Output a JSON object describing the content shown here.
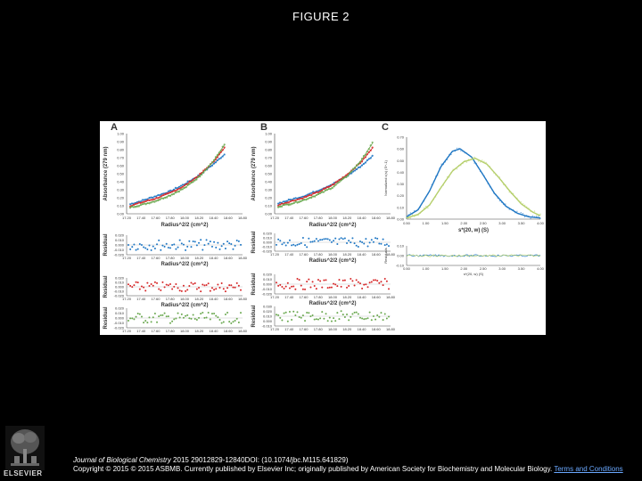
{
  "page": {
    "title": "FIGURE 2"
  },
  "footer": {
    "journal": "Journal of Biological Chemistry",
    "citation": " 2015 29012829-12840DOI: (10.1074/jbc.M115.641829)",
    "copyright": "Copyright © 2015 © 2015 ASBMB. Currently published by Elsevier Inc; originally published by American Society for Biochemistry and Molecular Biology.",
    "link": "Terms and Conditions"
  },
  "logo": {
    "icon": "elsevier-tree-icon",
    "text": "ELSEVIER"
  },
  "colors": {
    "blue": "#1f77c4",
    "red": "#d62728",
    "green": "#6aa84f",
    "lightgreen": "#b5cf6b"
  },
  "chart_data": [
    {
      "type": "scatter",
      "panel": "A",
      "ylabel": "Absorbance (279 nm)",
      "xlabel": "Radius^2/2 (cm^2)",
      "yticks": [
        "1.00",
        "0.90",
        "0.80",
        "0.70",
        "0.60",
        "0.50",
        "0.40",
        "0.30",
        "0.20",
        "0.10",
        "0.00"
      ],
      "xticks": [
        "17.20",
        "17.40",
        "17.60",
        "17.80",
        "18.00",
        "18.20",
        "18.40",
        "18.60",
        "18.80"
      ],
      "xlim": [
        17.2,
        18.8
      ],
      "ylim": [
        0,
        1
      ],
      "series": [
        {
          "color": "blue",
          "x": [
            17.25,
            17.4,
            17.6,
            17.8,
            18.0,
            18.2,
            18.4,
            18.55
          ],
          "y": [
            0.12,
            0.16,
            0.22,
            0.28,
            0.37,
            0.48,
            0.62,
            0.74
          ]
        },
        {
          "color": "red",
          "x": [
            17.25,
            17.4,
            17.6,
            17.8,
            18.0,
            18.2,
            18.4,
            18.55
          ],
          "y": [
            0.1,
            0.14,
            0.19,
            0.26,
            0.35,
            0.48,
            0.65,
            0.82
          ]
        },
        {
          "color": "green",
          "x": [
            17.25,
            17.4,
            17.6,
            17.8,
            18.0,
            18.2,
            18.4,
            18.55
          ],
          "y": [
            0.08,
            0.11,
            0.16,
            0.23,
            0.32,
            0.46,
            0.66,
            0.86
          ]
        }
      ],
      "residuals": [
        {
          "color": "blue",
          "ylabel": "Residual",
          "yticks": [
            "0.020",
            "0.010",
            "0.000",
            "-0.010",
            "-0.020"
          ]
        },
        {
          "color": "red",
          "ylabel": "Residual",
          "yticks": [
            "0.020",
            "0.010",
            "0.000",
            "-0.010",
            "-0.020"
          ]
        },
        {
          "color": "green",
          "ylabel": "Residual",
          "yticks": [
            "0.020",
            "0.010",
            "0.000",
            "-0.010",
            "-0.020"
          ]
        }
      ]
    },
    {
      "type": "scatter",
      "panel": "B",
      "ylabel": "Absorbance (279 nm)",
      "xlabel": "Radius^2/2 (cm^2)",
      "yticks": [
        "1.00",
        "0.90",
        "0.80",
        "0.70",
        "0.60",
        "0.50",
        "0.40",
        "0.30",
        "0.20",
        "0.10",
        "0.00"
      ],
      "xticks": [
        "17.20",
        "17.40",
        "17.60",
        "17.80",
        "18.00",
        "18.20",
        "18.40",
        "18.60",
        "18.80"
      ],
      "xlim": [
        17.2,
        18.8
      ],
      "ylim": [
        0,
        1
      ],
      "series": [
        {
          "color": "blue",
          "x": [
            17.25,
            17.4,
            17.6,
            17.8,
            18.0,
            18.2,
            18.4,
            18.55
          ],
          "y": [
            0.13,
            0.17,
            0.22,
            0.29,
            0.37,
            0.47,
            0.6,
            0.72
          ]
        },
        {
          "color": "red",
          "x": [
            17.25,
            17.4,
            17.6,
            17.8,
            18.0,
            18.2,
            18.4,
            18.55
          ],
          "y": [
            0.11,
            0.15,
            0.2,
            0.27,
            0.36,
            0.49,
            0.65,
            0.82
          ]
        },
        {
          "color": "green",
          "x": [
            17.25,
            17.4,
            17.6,
            17.8,
            18.0,
            18.2,
            18.4,
            18.55
          ],
          "y": [
            0.09,
            0.12,
            0.17,
            0.24,
            0.33,
            0.47,
            0.67,
            0.88
          ]
        }
      ],
      "residuals": [
        {
          "color": "blue",
          "ylabel": "Residual",
          "yticks": [
            "0.020",
            "0.010",
            "0.000",
            "-0.010",
            "-0.020"
          ]
        },
        {
          "color": "red",
          "ylabel": "Residual",
          "yticks": [
            "0.020",
            "0.010",
            "0.000",
            "-0.010",
            "-0.020"
          ]
        },
        {
          "color": "green",
          "ylabel": "Residual",
          "yticks": [
            "0.030",
            "0.020",
            "0.010",
            "0.000",
            "-0.010"
          ]
        }
      ]
    },
    {
      "type": "line",
      "panel": "C",
      "ylabel": "Normalized c(s) (S^-1)",
      "xlabel": "s*(20, w) (S)",
      "yticks": [
        "0.70",
        "0.60",
        "0.50",
        "0.40",
        "0.30",
        "0.20",
        "0.10",
        "0.00"
      ],
      "xticks": [
        "0.50",
        "1.00",
        "1.50",
        "2.00",
        "2.50",
        "3.00",
        "3.50",
        "4.00"
      ],
      "xlim": [
        0.5,
        4.0
      ],
      "ylim": [
        0,
        0.7
      ],
      "series": [
        {
          "color": "blue",
          "x": [
            0.5,
            0.8,
            1.1,
            1.4,
            1.7,
            1.9,
            2.2,
            2.5,
            2.8,
            3.1,
            3.4,
            3.7,
            4.0
          ],
          "y": [
            0.02,
            0.08,
            0.24,
            0.45,
            0.58,
            0.6,
            0.53,
            0.38,
            0.22,
            0.11,
            0.05,
            0.02,
            0.01
          ]
        },
        {
          "color": "lightgreen",
          "x": [
            0.5,
            0.8,
            1.1,
            1.4,
            1.7,
            2.0,
            2.3,
            2.6,
            2.9,
            3.2,
            3.5,
            3.8,
            4.0
          ],
          "y": [
            0.01,
            0.04,
            0.12,
            0.27,
            0.41,
            0.49,
            0.52,
            0.47,
            0.36,
            0.24,
            0.13,
            0.06,
            0.03
          ]
        }
      ],
      "residuals": {
        "ylabel": "Residuals",
        "xlabel": "s*(20, w) (S)",
        "yticks": [
          "0.10",
          "0.00",
          "-0.10"
        ],
        "xticks": [
          "0.50",
          "1.00",
          "1.50",
          "2.00",
          "2.50",
          "3.00",
          "3.50",
          "4.00"
        ]
      }
    }
  ]
}
